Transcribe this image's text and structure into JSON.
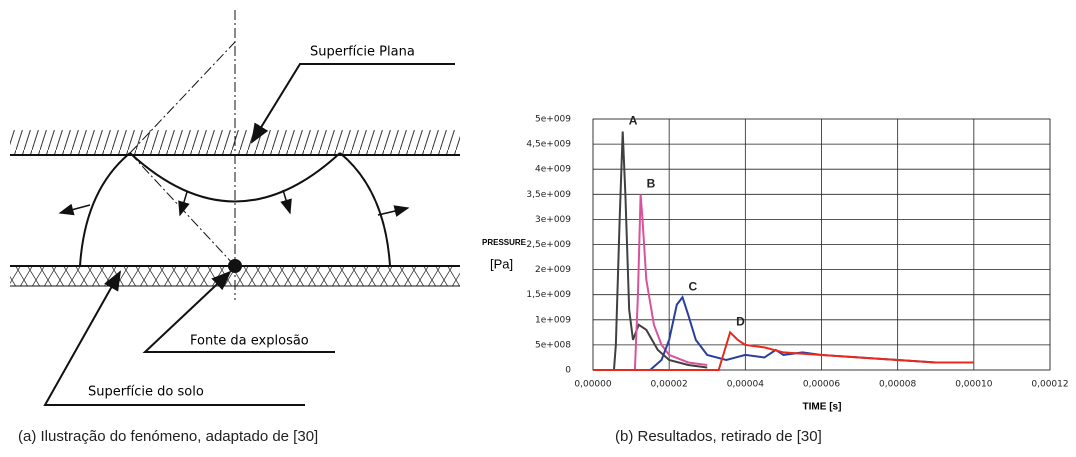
{
  "diagram": {
    "labels": [
      "Superfície Plana",
      "Fonte da explosão",
      "Superfície do solo"
    ]
  },
  "chart_data": {
    "type": "line",
    "xlabel": "TIME [s]",
    "ylabel": "PRESSURE",
    "ylabel_unit": "[Pa]",
    "xlim": [
      0,
      0.00012
    ],
    "ylim": [
      0,
      5000000000.0
    ],
    "grid": true,
    "xticks": [
      {
        "value": 0,
        "label": "0,00000"
      },
      {
        "value": 2e-05,
        "label": "0,00002"
      },
      {
        "value": 4e-05,
        "label": "0,00004"
      },
      {
        "value": 6e-05,
        "label": "0,00006"
      },
      {
        "value": 8e-05,
        "label": "0,00008"
      },
      {
        "value": 0.0001,
        "label": "0,00010"
      },
      {
        "value": 0.00012,
        "label": "0,00012"
      }
    ],
    "yticks": [
      0,
      {
        "value": 500000000.0,
        "label": "5e+008"
      },
      {
        "value": 1000000000.0,
        "label": "1e+009"
      },
      {
        "value": 1500000000.0,
        "label": "1,5e+009"
      },
      {
        "value": 2000000000.0,
        "label": "2e+009"
      },
      {
        "value": 2500000000.0,
        "label": "2,5e+009"
      },
      {
        "value": 3000000000.0,
        "label": "3e+009"
      },
      {
        "value": 3500000000.0,
        "label": "3,5e+009"
      },
      {
        "value": 4000000000.0,
        "label": "4e+009"
      },
      {
        "value": 4500000000.0,
        "label": "4,5e+009"
      },
      {
        "value": 5000000000.0,
        "label": "5e+009"
      }
    ],
    "series": [
      {
        "name": "A",
        "color": "#404040",
        "x": [
          5.5e-06,
          6e-06,
          7e-06,
          7.8e-06,
          8.5e-06,
          9.5e-06,
          1.05e-05,
          1.2e-05,
          1.4e-05,
          1.7e-05,
          2e-05,
          2.5e-05,
          3e-05
        ],
        "values": [
          0,
          500000000.0,
          3000000000.0,
          4750000000.0,
          3500000000.0,
          1200000000.0,
          600000000.0,
          900000000.0,
          800000000.0,
          400000000.0,
          200000000.0,
          100000000.0,
          50000000.0
        ]
      },
      {
        "name": "B",
        "color": "#d9539a",
        "x": [
          1.1e-05,
          1.18e-05,
          1.25e-05,
          1.3e-05,
          1.4e-05,
          1.6e-05,
          1.8e-05,
          2e-05,
          2.5e-05,
          3e-05
        ],
        "values": [
          0,
          1500000000.0,
          3500000000.0,
          3000000000.0,
          1800000000.0,
          900000000.0,
          500000000.0,
          300000000.0,
          150000000.0,
          100000000.0
        ]
      },
      {
        "name": "C",
        "color": "#2a3f9d",
        "x": [
          1.5e-05,
          1.8e-05,
          2e-05,
          2.2e-05,
          2.35e-05,
          2.5e-05,
          2.7e-05,
          3e-05,
          3.5e-05,
          4e-05,
          4.5e-05,
          4.8e-05,
          5e-05,
          5.5e-05,
          6e-05,
          7e-05,
          8e-05,
          9e-05,
          0.0001
        ],
        "values": [
          0,
          200000000.0,
          600000000.0,
          1300000000.0,
          1450000000.0,
          1100000000.0,
          600000000.0,
          300000000.0,
          200000000.0,
          300000000.0,
          250000000.0,
          400000000.0,
          300000000.0,
          350000000.0,
          300000000.0,
          250000000.0,
          200000000.0,
          150000000.0,
          150000000.0
        ]
      },
      {
        "name": "D",
        "color": "#e8291c",
        "x": [
          0,
          3.3e-05,
          3.6e-05,
          3.8e-05,
          4e-05,
          4.5e-05,
          5e-05,
          6e-05,
          7e-05,
          8e-05,
          9e-05,
          0.0001
        ],
        "values": [
          0,
          0,
          750000000.0,
          600000000.0,
          500000000.0,
          450000000.0,
          350000000.0,
          300000000.0,
          250000000.0,
          200000000.0,
          150000000.0,
          150000000.0
        ]
      }
    ]
  },
  "captions": [
    "(a) Ilustração do fenómeno, adaptado de [30]",
    "(b) Resultados, retirado de [30]"
  ]
}
